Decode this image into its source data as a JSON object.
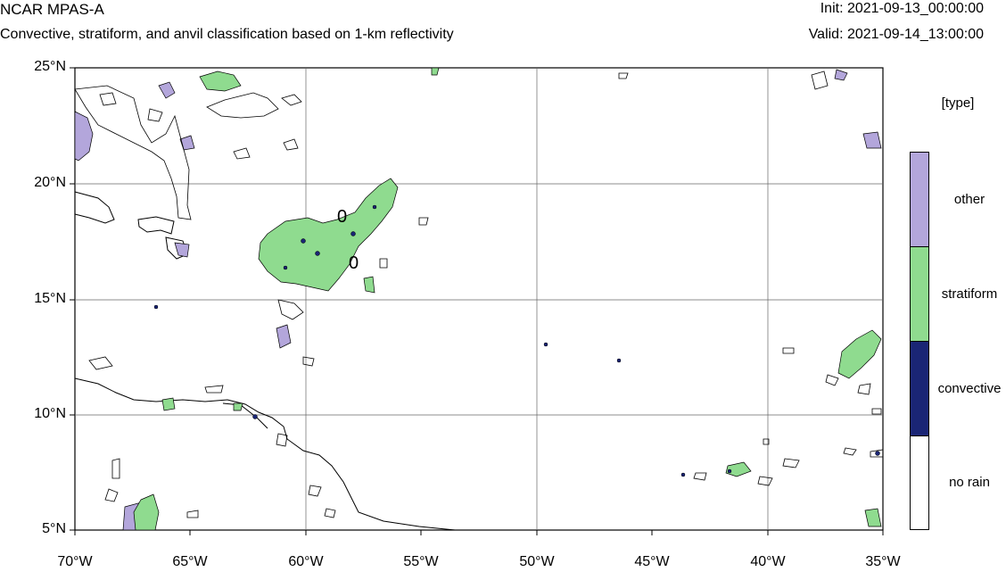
{
  "header": {
    "model": "NCAR MPAS-A",
    "subtitle": "Convective, stratiform, and anvil classification based on 1-km reflectivity",
    "init": "Init: 2021-09-13_00:00:00",
    "valid": "Valid: 2021-09-14_13:00:00"
  },
  "map": {
    "lat_labels": [
      "25°N",
      "20°N",
      "15°N",
      "10°N",
      "5°N"
    ],
    "lon_labels": [
      "70°W",
      "65°W",
      "60°W",
      "55°W",
      "50°W",
      "45°W",
      "40°W",
      "35°W"
    ],
    "lon_range": [
      -70,
      -35
    ],
    "lat_range": [
      5,
      25
    ],
    "grid": true,
    "contour_labels": [
      "0",
      "0"
    ]
  },
  "legend": {
    "title": "[type]",
    "items": [
      {
        "label": "other",
        "color": "#b3a6db"
      },
      {
        "label": "stratiform",
        "color": "#8fdb8f"
      },
      {
        "label": "convective",
        "color": "#1a2575"
      },
      {
        "label": "no rain",
        "color": "#ffffff"
      }
    ]
  }
}
